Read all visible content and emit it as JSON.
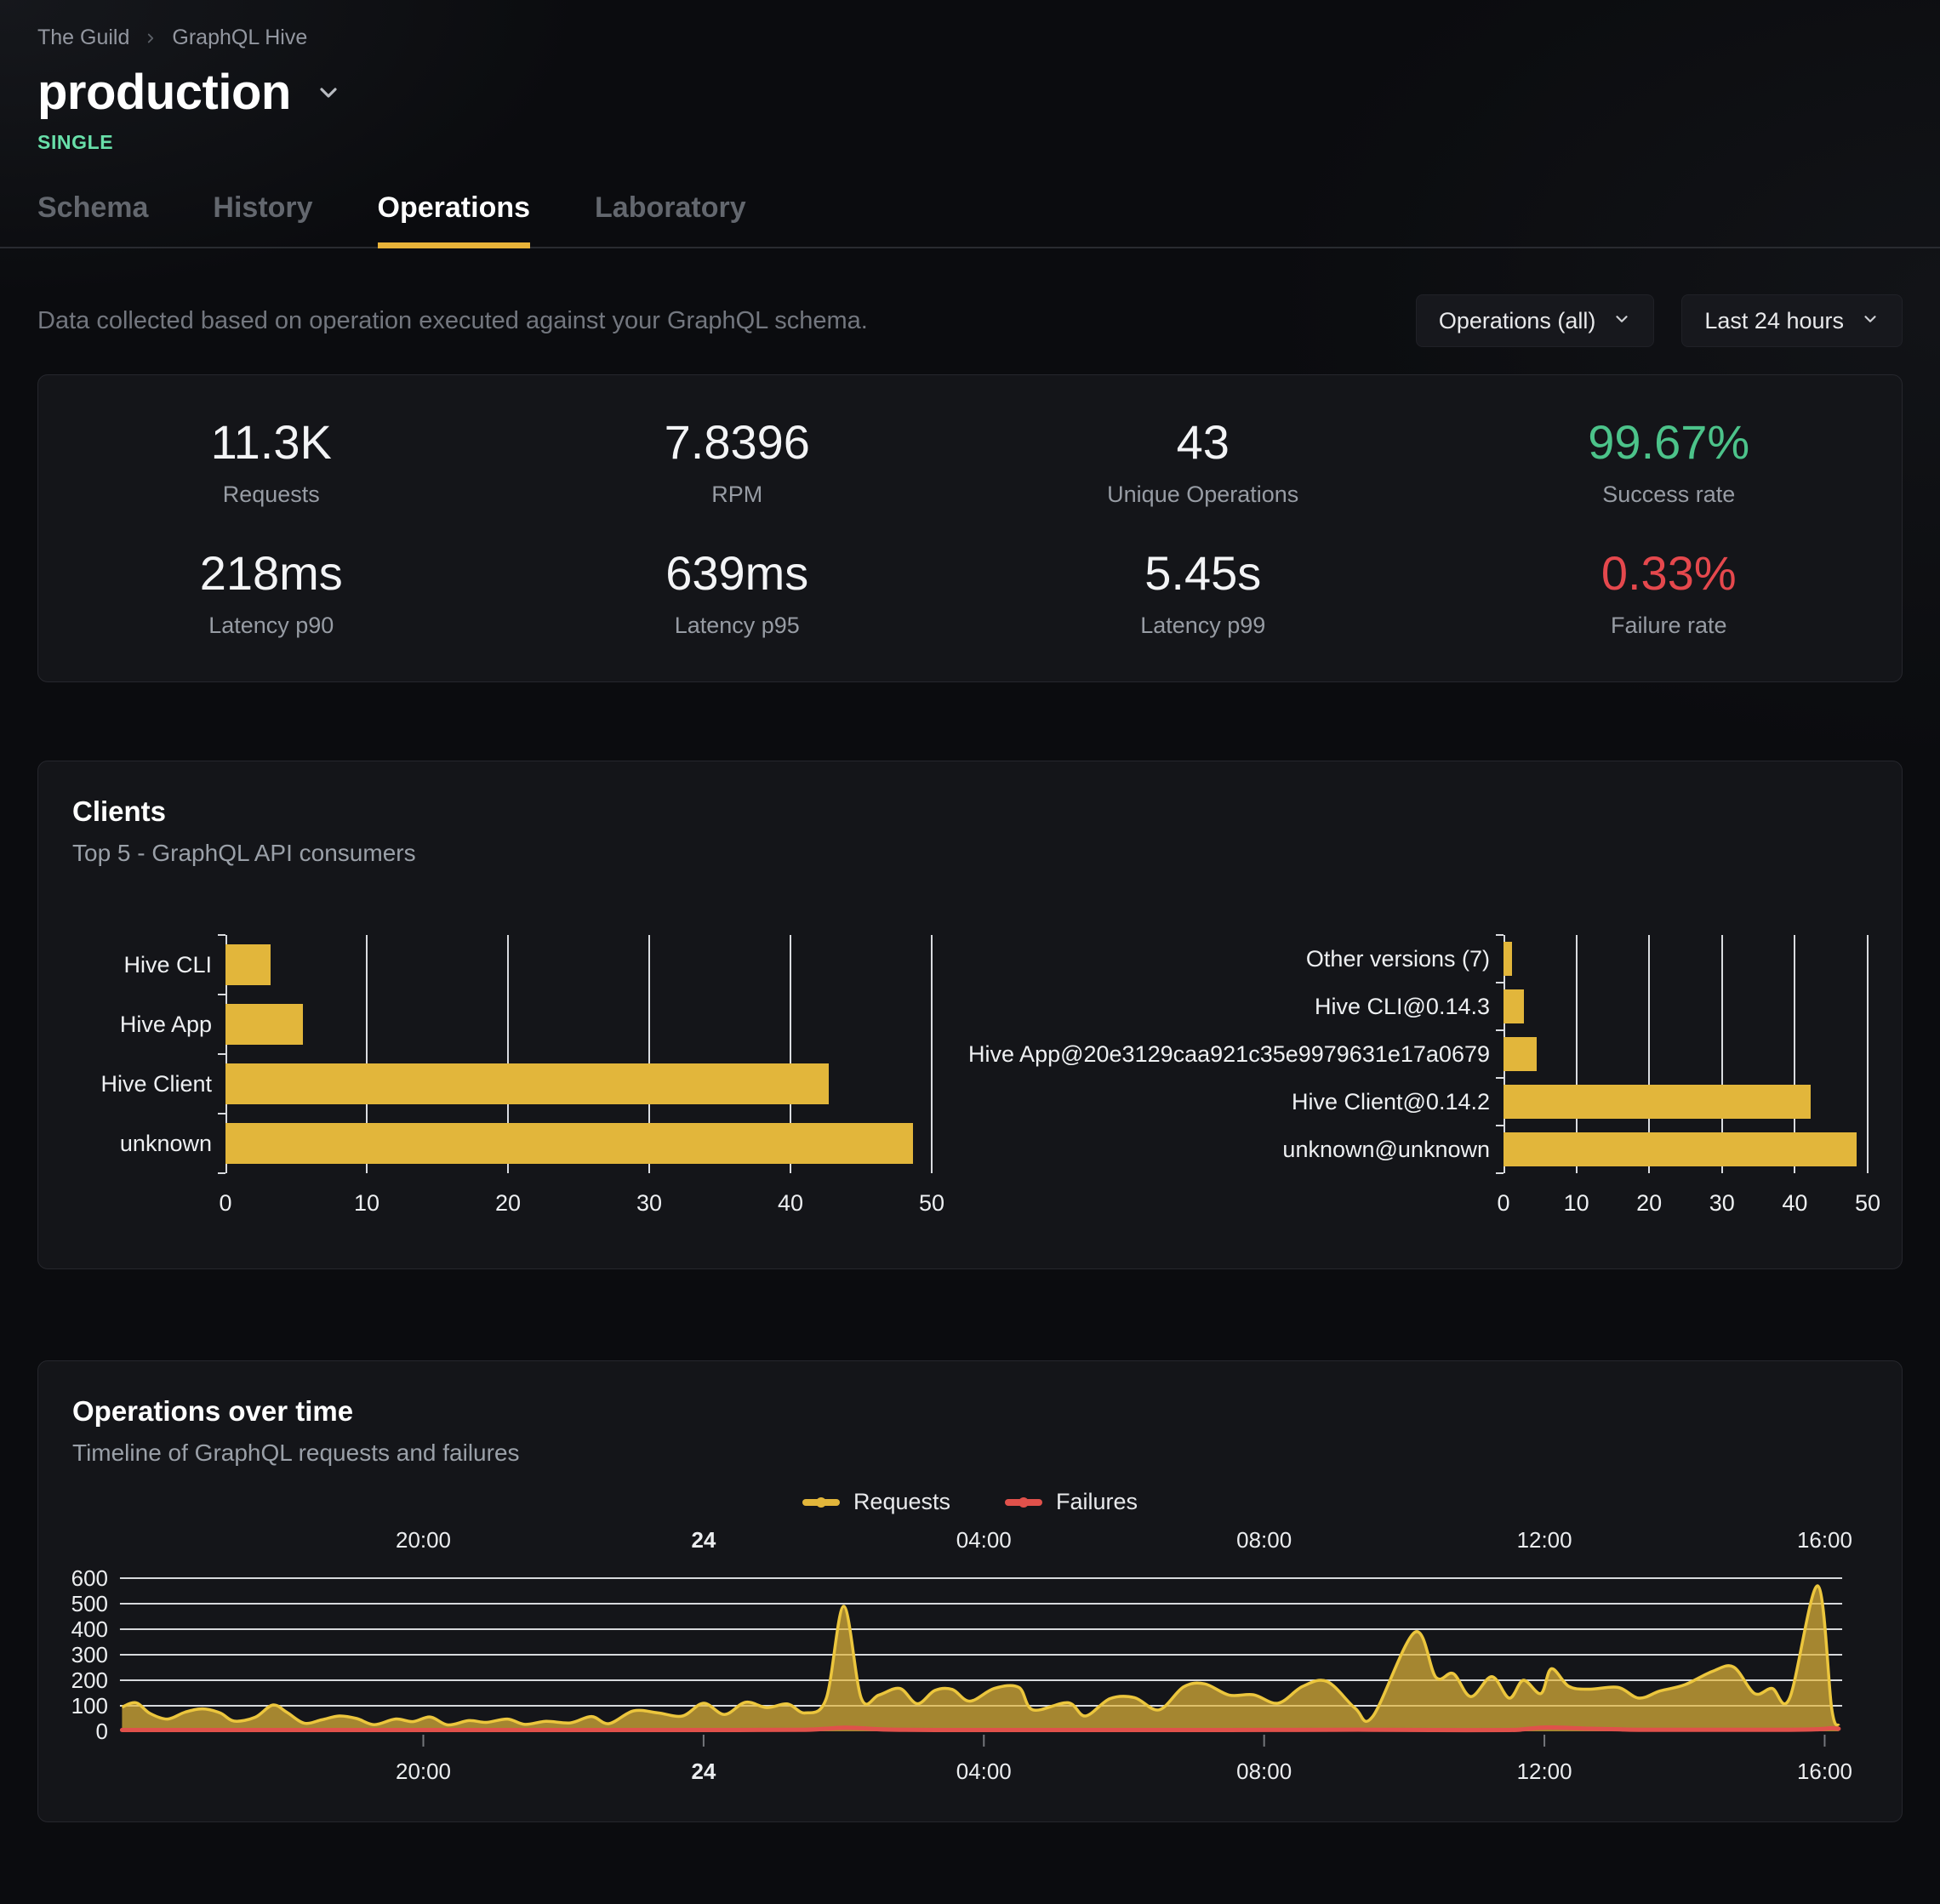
{
  "header": {
    "breadcrumb": {
      "org": "The Guild",
      "project": "GraphQL Hive"
    },
    "title": "production",
    "badge": "SINGLE"
  },
  "tabs": [
    {
      "label": "Schema",
      "active": false
    },
    {
      "label": "History",
      "active": false
    },
    {
      "label": "Operations",
      "active": true
    },
    {
      "label": "Laboratory",
      "active": false
    }
  ],
  "filters": {
    "description": "Data collected based on operation executed against your GraphQL schema.",
    "operations_select": "Operations (all)",
    "period_select": "Last 24 hours"
  },
  "stats": [
    {
      "value": "11.3K",
      "label": "Requests"
    },
    {
      "value": "7.8396",
      "label": "RPM"
    },
    {
      "value": "43",
      "label": "Unique Operations"
    },
    {
      "value": "99.67%",
      "label": "Success rate",
      "color": "#4cc38a"
    },
    {
      "value": "218ms",
      "label": "Latency p90"
    },
    {
      "value": "639ms",
      "label": "Latency p95"
    },
    {
      "value": "5.45s",
      "label": "Latency p99"
    },
    {
      "value": "0.33%",
      "label": "Failure rate",
      "color": "#e5484d"
    }
  ],
  "clients_card": {
    "title": "Clients",
    "subtitle": "Top 5 - GraphQL API consumers"
  },
  "timeline_card": {
    "title": "Operations over time",
    "subtitle": "Timeline of GraphQL requests and failures",
    "legend": [
      {
        "label": "Requests",
        "color": "#e2b63b"
      },
      {
        "label": "Failures",
        "color": "#e0514b"
      }
    ]
  },
  "colors": {
    "accent": "#e8b339",
    "bar": "#e2b63b",
    "success": "#4cc38a",
    "failure": "#e5484d",
    "badge": "#68dfa9",
    "requests_line": "#ecc63d",
    "failures_line": "#e0514b"
  },
  "chart_data": [
    {
      "id": "clients_by_name",
      "type": "bar",
      "orientation": "horizontal",
      "categories": [
        "Hive CLI",
        "Hive App",
        "Hive Client",
        "unknown"
      ],
      "values": [
        3.2,
        5.5,
        42.7,
        48.7
      ],
      "xlim": [
        0,
        50
      ],
      "xticks": [
        0,
        10,
        20,
        30,
        40,
        50
      ],
      "bar_color": "#e2b63b",
      "grid": true
    },
    {
      "id": "clients_by_version",
      "type": "bar",
      "orientation": "horizontal",
      "categories": [
        "Other versions (7)",
        "Hive CLI@0.14.3",
        "Hive App@20e3129caa921c35e9979631e17a0679",
        "Hive Client@0.14.2",
        "unknown@unknown"
      ],
      "values": [
        1.2,
        2.8,
        4.5,
        42.2,
        48.5
      ],
      "xlim": [
        0,
        50
      ],
      "xticks": [
        0,
        10,
        20,
        30,
        40,
        50
      ],
      "bar_color": "#e2b63b",
      "grid": true
    },
    {
      "id": "operations_over_time",
      "type": "area",
      "title": "Operations over time",
      "x_unit": "hour of day, continuing past 24 into the next day",
      "xrange": [
        15.67,
        40.25
      ],
      "xticks": [
        {
          "x": 20,
          "label": "20:00",
          "bold": false
        },
        {
          "x": 24,
          "label": "24",
          "bold": true
        },
        {
          "x": 28,
          "label": "04:00",
          "bold": false
        },
        {
          "x": 32,
          "label": "08:00",
          "bold": false
        },
        {
          "x": 36,
          "label": "12:00",
          "bold": false
        },
        {
          "x": 40,
          "label": "16:00",
          "bold": false
        }
      ],
      "ylim": [
        0,
        620
      ],
      "yticks": [
        0,
        100,
        200,
        300,
        400,
        500,
        600
      ],
      "grid": "horizontal",
      "legend_position": "top-center",
      "series": [
        {
          "name": "Requests",
          "color": "#ecc63d",
          "fill": "rgba(226,182,59,0.7)",
          "points": [
            [
              15.7,
              95
            ],
            [
              15.9,
              112
            ],
            [
              16.1,
              70
            ],
            [
              16.35,
              48
            ],
            [
              16.6,
              75
            ],
            [
              16.85,
              88
            ],
            [
              17.1,
              72
            ],
            [
              17.3,
              40
            ],
            [
              17.6,
              55
            ],
            [
              17.85,
              103
            ],
            [
              18.05,
              75
            ],
            [
              18.3,
              32
            ],
            [
              18.55,
              45
            ],
            [
              18.8,
              60
            ],
            [
              19.05,
              50
            ],
            [
              19.3,
              26
            ],
            [
              19.6,
              48
            ],
            [
              19.85,
              38
            ],
            [
              20.1,
              56
            ],
            [
              20.35,
              25
            ],
            [
              20.65,
              42
            ],
            [
              20.9,
              35
            ],
            [
              21.2,
              48
            ],
            [
              21.45,
              27
            ],
            [
              21.75,
              39
            ],
            [
              22.1,
              33
            ],
            [
              22.4,
              58
            ],
            [
              22.65,
              30
            ],
            [
              23.0,
              80
            ],
            [
              23.35,
              72
            ],
            [
              23.7,
              60
            ],
            [
              24.0,
              110
            ],
            [
              24.3,
              66
            ],
            [
              24.6,
              114
            ],
            [
              24.9,
              93
            ],
            [
              25.2,
              107
            ],
            [
              25.45,
              72
            ],
            [
              25.75,
              128
            ],
            [
              26.0,
              490
            ],
            [
              26.25,
              130
            ],
            [
              26.5,
              142
            ],
            [
              26.8,
              168
            ],
            [
              27.05,
              108
            ],
            [
              27.3,
              160
            ],
            [
              27.55,
              164
            ],
            [
              27.8,
              118
            ],
            [
              28.15,
              168
            ],
            [
              28.5,
              172
            ],
            [
              28.7,
              84
            ],
            [
              29.2,
              112
            ],
            [
              29.45,
              60
            ],
            [
              29.8,
              128
            ],
            [
              30.15,
              132
            ],
            [
              30.5,
              84
            ],
            [
              30.85,
              174
            ],
            [
              31.15,
              186
            ],
            [
              31.5,
              142
            ],
            [
              31.85,
              143
            ],
            [
              32.2,
              110
            ],
            [
              32.55,
              176
            ],
            [
              32.9,
              195
            ],
            [
              33.3,
              90
            ],
            [
              33.55,
              58
            ],
            [
              34.15,
              388
            ],
            [
              34.45,
              212
            ],
            [
              34.7,
              226
            ],
            [
              34.95,
              136
            ],
            [
              35.25,
              214
            ],
            [
              35.5,
              130
            ],
            [
              35.7,
              200
            ],
            [
              35.95,
              148
            ],
            [
              36.1,
              245
            ],
            [
              36.35,
              176
            ],
            [
              36.65,
              165
            ],
            [
              37.05,
              172
            ],
            [
              37.35,
              130
            ],
            [
              37.65,
              158
            ],
            [
              38.0,
              182
            ],
            [
              38.4,
              235
            ],
            [
              38.7,
              252
            ],
            [
              39.0,
              148
            ],
            [
              39.25,
              168
            ],
            [
              39.5,
              130
            ],
            [
              39.9,
              570
            ],
            [
              40.1,
              90
            ],
            [
              40.2,
              22
            ]
          ]
        },
        {
          "name": "Failures",
          "color": "#e0514b",
          "fill": "none",
          "points": [
            [
              15.7,
              5
            ],
            [
              17.0,
              5
            ],
            [
              18.5,
              5
            ],
            [
              20.0,
              5
            ],
            [
              21.5,
              5
            ],
            [
              23.0,
              5
            ],
            [
              24.5,
              5
            ],
            [
              25.45,
              6
            ],
            [
              25.75,
              10
            ],
            [
              26.0,
              14
            ],
            [
              26.25,
              12
            ],
            [
              26.5,
              8
            ],
            [
              26.8,
              6
            ],
            [
              27.3,
              5
            ],
            [
              28.5,
              5
            ],
            [
              30.0,
              5
            ],
            [
              31.5,
              5
            ],
            [
              33.0,
              6
            ],
            [
              33.55,
              6
            ],
            [
              34.45,
              5
            ],
            [
              35.5,
              5
            ],
            [
              35.7,
              8
            ],
            [
              35.95,
              14
            ],
            [
              36.1,
              15
            ],
            [
              36.35,
              13
            ],
            [
              36.65,
              10
            ],
            [
              37.05,
              8
            ],
            [
              37.35,
              6
            ],
            [
              38.4,
              6
            ],
            [
              39.5,
              6
            ],
            [
              39.9,
              8
            ],
            [
              40.1,
              12
            ],
            [
              40.2,
              10
            ]
          ]
        }
      ]
    }
  ]
}
